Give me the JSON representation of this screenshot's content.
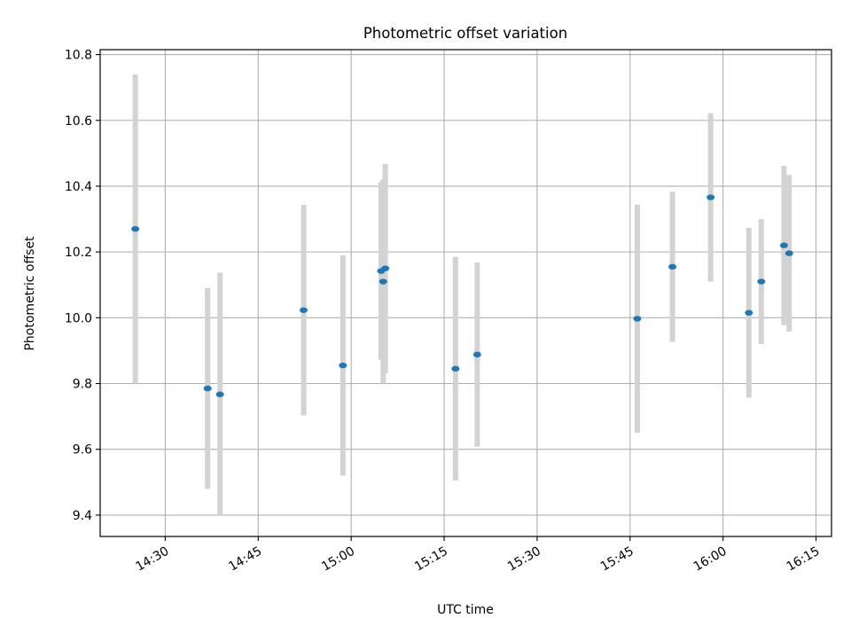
{
  "chart_data": {
    "type": "scatter",
    "title": "Photometric offset variation",
    "xlabel": "UTC time",
    "ylabel": "Photometric offset",
    "xlim": [
      "14:19:30",
      "16:17:30"
    ],
    "ylim": [
      9.335,
      10.815
    ],
    "grid": true,
    "x_ticks": [
      "14:30",
      "14:45",
      "15:00",
      "15:15",
      "15:30",
      "15:45",
      "16:00",
      "16:15"
    ],
    "y_ticks": [
      9.4,
      9.6,
      9.8,
      10.0,
      10.2,
      10.4,
      10.6,
      10.8
    ],
    "y_tick_labels": [
      "9.4",
      "9.6",
      "9.8",
      "10.0",
      "10.2",
      "10.4",
      "10.6",
      "10.8"
    ],
    "colors": {
      "marker": "#1f77b4",
      "errorbar": "#d3d3d3",
      "grid": "#b0b0b0"
    },
    "series": [
      {
        "points": [
          {
            "x": "14:25:10",
            "y": 10.27,
            "err": 0.47
          },
          {
            "x": "14:36:50",
            "y": 9.785,
            "err": 0.305
          },
          {
            "x": "14:38:50",
            "y": 9.767,
            "err": 0.37
          },
          {
            "x": "14:52:20",
            "y": 10.023,
            "err": 0.32
          },
          {
            "x": "14:58:40",
            "y": 9.855,
            "err": 0.335
          },
          {
            "x": "15:04:50",
            "y": 10.142,
            "err": 0.27
          },
          {
            "x": "15:05:10",
            "y": 10.11,
            "err": 0.31
          },
          {
            "x": "15:05:30",
            "y": 10.15,
            "err": 0.318
          },
          {
            "x": "15:16:50",
            "y": 9.845,
            "err": 0.34
          },
          {
            "x": "15:20:20",
            "y": 9.888,
            "err": 0.28
          },
          {
            "x": "15:46:10",
            "y": 9.997,
            "err": 0.347
          },
          {
            "x": "15:51:50",
            "y": 10.155,
            "err": 0.228
          },
          {
            "x": "15:58:00",
            "y": 10.366,
            "err": 0.256
          },
          {
            "x": "16:04:10",
            "y": 10.015,
            "err": 0.258
          },
          {
            "x": "16:06:10",
            "y": 10.11,
            "err": 0.19
          },
          {
            "x": "16:09:50",
            "y": 10.22,
            "err": 0.242
          },
          {
            "x": "16:10:40",
            "y": 10.196,
            "err": 0.238
          }
        ]
      }
    ]
  }
}
